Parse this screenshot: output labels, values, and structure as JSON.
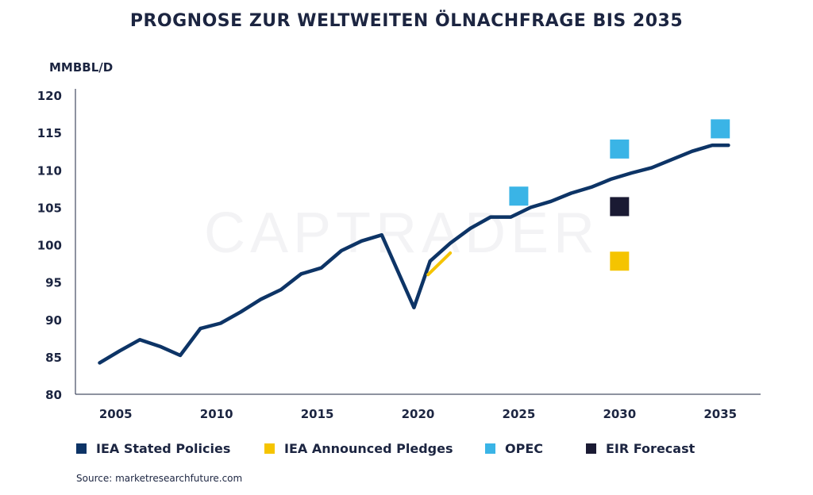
{
  "chart_data": {
    "type": "line",
    "title": "PROGNOSE ZUR WELTWEITEN ÖLNACHFRAGE BIS 2035",
    "ylabel": "MMBBL/D",
    "xlabel": "",
    "xlim": [
      2003,
      2037
    ],
    "ylim": [
      80,
      120
    ],
    "x_ticks": [
      "2005",
      "2010",
      "2015",
      "2020",
      "2025",
      "2030",
      "2035"
    ],
    "y_ticks": [
      "80",
      "85",
      "90",
      "95",
      "100",
      "105",
      "110",
      "115",
      "120"
    ],
    "grid": false,
    "legend_position": "bottom",
    "watermark": "CAPTRADER",
    "source": "Source: marketresearchfuture.com",
    "colors": {
      "stated": "#0d3466",
      "pledges": "#f5c400",
      "opec": "#3ab4e6",
      "eir": "#1a1a33"
    },
    "series": [
      {
        "name": "IEA Stated Policies",
        "kind": "line",
        "color": "#0d3466",
        "x": [
          2004.2,
          2005.2,
          2006.2,
          2007.2,
          2008.2,
          2009.2,
          2010.2,
          2011.2,
          2012.2,
          2013.2,
          2014.2,
          2015.2,
          2016.2,
          2017.2,
          2018.2,
          2019.8,
          2020.6,
          2021.6,
          2022.6,
          2023.6,
          2024.6,
          2025.6,
          2026.6,
          2027.6,
          2028.6,
          2029.6,
          2030.6,
          2031.6,
          2032.6,
          2033.6,
          2034.6,
          2035.4
        ],
        "y": [
          84.2,
          85.8,
          87.3,
          86.4,
          85.2,
          88.8,
          89.5,
          91.0,
          92.7,
          94.0,
          96.1,
          96.9,
          99.2,
          100.5,
          101.3,
          91.6,
          97.8,
          100.2,
          102.2,
          103.7,
          103.7,
          105.0,
          105.8,
          106.9,
          107.7,
          108.8,
          109.6,
          110.3,
          111.4,
          112.5,
          113.3,
          113.3
        ]
      },
      {
        "name": "IEA Announced Pledges",
        "kind": "line",
        "color": "#f5c400",
        "x": [
          2020.5,
          2021.6
        ],
        "y": [
          96.0,
          98.9
        ]
      },
      {
        "name": "OPEC",
        "kind": "marker",
        "color": "#3ab4e6",
        "x": [
          2025,
          2030,
          2035
        ],
        "y": [
          106.5,
          112.8,
          115.5
        ]
      },
      {
        "name": "EIR Forecast",
        "kind": "marker",
        "color": "#1a1a33",
        "x": [
          2030
        ],
        "y": [
          105.1
        ]
      },
      {
        "name": "IEA Announced Pledges",
        "kind": "marker",
        "color": "#f5c400",
        "x": [
          2030
        ],
        "y": [
          97.8
        ],
        "legend": false
      }
    ]
  }
}
